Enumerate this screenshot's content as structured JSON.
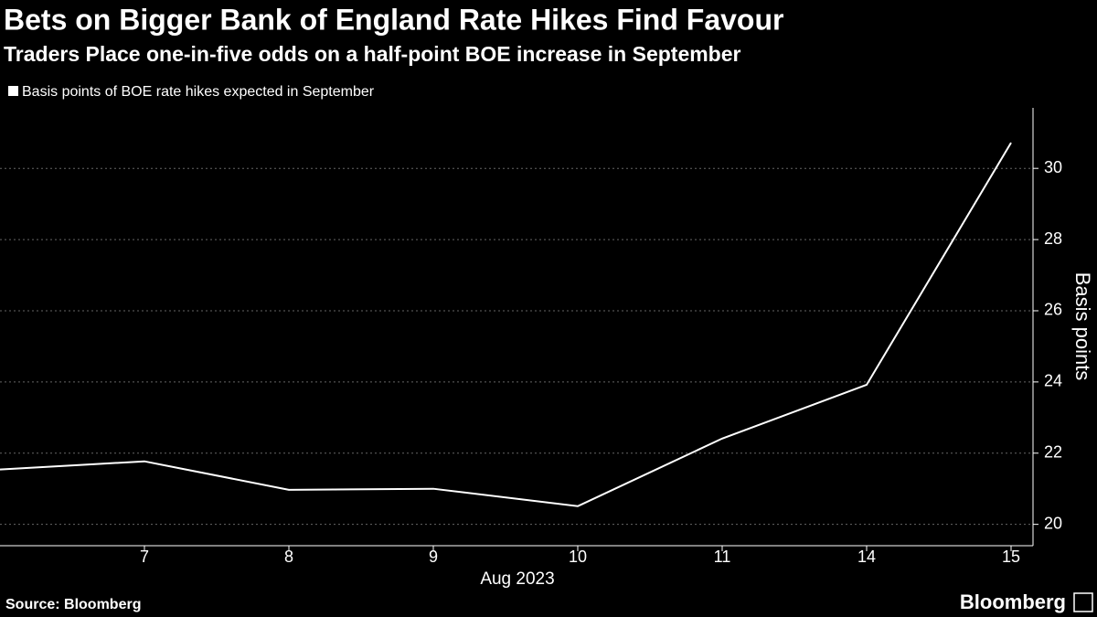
{
  "chart_data": {
    "type": "line",
    "title": "Bets on Bigger Bank of England Rate Hikes Find Favour",
    "subtitle": "Traders Place one-in-five odds on a half-point BOE increase in September",
    "categories": [
      null,
      "7",
      "8",
      "9",
      "10",
      "11",
      "14",
      "15"
    ],
    "x_label": "Aug 2023",
    "y_label": "Basis points",
    "series": [
      {
        "name": "Basis points of BOE rate hikes expected in September",
        "color": "#ffffff",
        "values": [
          21.54,
          21.77,
          20.97,
          21.0,
          20.51,
          22.41,
          23.92,
          30.72
        ]
      }
    ],
    "ylim": [
      19.4,
      31.7
    ],
    "yticks": [
      20,
      22,
      24,
      26,
      28,
      30
    ],
    "grid": true,
    "source": "Source: Bloomberg",
    "brand": "Bloomberg"
  }
}
